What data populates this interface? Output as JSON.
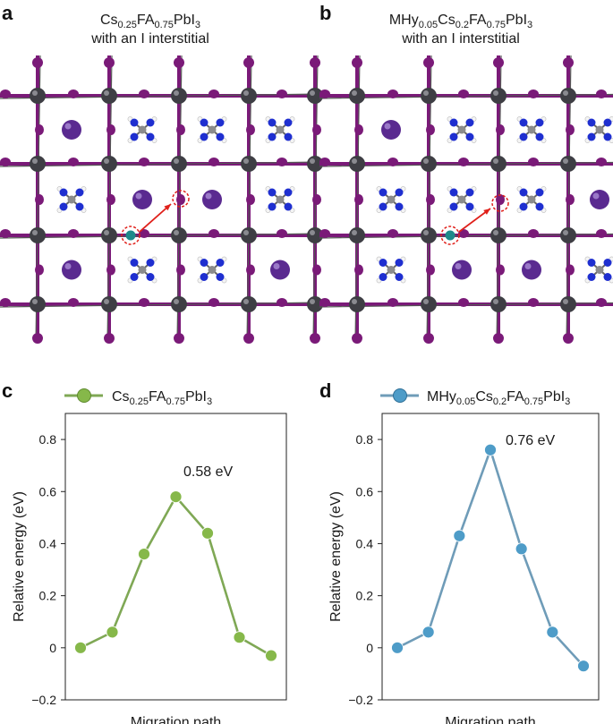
{
  "panel_a": {
    "letter": "a",
    "title_line1": "Cs0.25FA0.75PbI3",
    "title_line2": "with an I interstitial"
  },
  "panel_b": {
    "letter": "b",
    "title_line1": "MHy0.05Cs0.2FA0.75PbI3",
    "title_line2": "with an I interstitial"
  },
  "colors": {
    "iodide": "#7a1a78",
    "lead": "#3e3e44",
    "cesium": "#5a2a90",
    "nitrogen": "#1f2fd0",
    "carbon": "#8c8c8c",
    "hydrogen": "#f4f4f4",
    "interstitial": "#1e8a8a",
    "arrow": "#e0201a",
    "series_c": "#86b84a",
    "series_c_line": "#7fa855",
    "series_d": "#4e9cc8",
    "series_d_line": "#6f9cb8"
  },
  "chart_data": [
    {
      "panel": "c",
      "type": "line",
      "legend": "Cs0.25FA0.75PbI3",
      "xlabel": "Migration path",
      "ylabel": "Relative energy (eV)",
      "ylim": [
        -0.2,
        0.9
      ],
      "yticks": [
        -0.2,
        0,
        0.2,
        0.4,
        0.6,
        0.8
      ],
      "ytick_labels": [
        "−0.2",
        "0",
        "0.2",
        "0.4",
        "0.6",
        "0.8"
      ],
      "x": [
        1,
        2,
        3,
        4,
        5,
        6,
        7
      ],
      "values": [
        0.0,
        0.06,
        0.36,
        0.58,
        0.44,
        0.04,
        -0.03
      ],
      "annotation": "0.58 eV"
    },
    {
      "panel": "d",
      "type": "line",
      "legend": "MHy0.05Cs0.2FA0.75PbI3",
      "xlabel": "Migration path",
      "ylabel": "Relative energy (eV)",
      "ylim": [
        -0.2,
        0.9
      ],
      "yticks": [
        -0.2,
        0,
        0.2,
        0.4,
        0.6,
        0.8
      ],
      "ytick_labels": [
        "−0.2",
        "0",
        "0.2",
        "0.4",
        "0.6",
        "0.8"
      ],
      "x": [
        1,
        2,
        3,
        4,
        5,
        6,
        7
      ],
      "values": [
        0.0,
        0.06,
        0.43,
        0.76,
        0.38,
        0.06,
        -0.07
      ],
      "annotation": "0.76 eV"
    }
  ]
}
